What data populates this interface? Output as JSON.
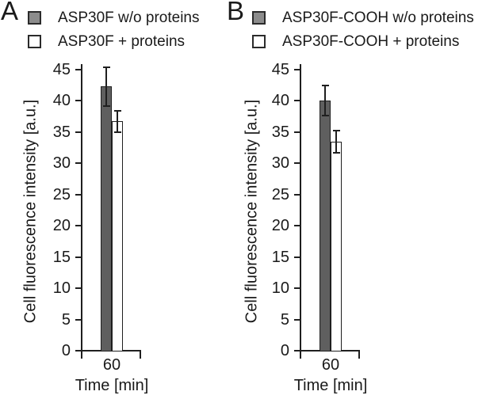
{
  "figure": {
    "background": "#ffffff",
    "text_color": "#1a1a1a",
    "axis_color": "#1f1f1f"
  },
  "chart_data": [
    {
      "panel": "A",
      "type": "bar",
      "categories": [
        "60"
      ],
      "xlabel": "Time [min]",
      "ylabel": "Cell fluorescence intensity [a.u.]",
      "ylim": [
        0,
        45
      ],
      "yticks": [
        0,
        5,
        10,
        15,
        20,
        25,
        30,
        35,
        40,
        45
      ],
      "grid": false,
      "legend_position": "top-left",
      "error_bars": true,
      "series": [
        {
          "name": "ASP30F w/o proteins",
          "values": [
            42.3
          ],
          "errors": [
            3.1
          ],
          "fill": "#5f5f5f",
          "legend_fill": "#8c8c8c",
          "border": "#1f1f1f"
        },
        {
          "name": "ASP30F + proteins",
          "values": [
            36.7
          ],
          "errors": [
            1.7
          ],
          "fill": "#ffffff",
          "legend_fill": "#ffffff",
          "border": "#1f1f1f"
        }
      ]
    },
    {
      "panel": "B",
      "type": "bar",
      "categories": [
        "60"
      ],
      "xlabel": "Time [min]",
      "ylabel": "Cell fluorescence intensity [a.u.]",
      "ylim": [
        0,
        45
      ],
      "yticks": [
        0,
        5,
        10,
        15,
        20,
        25,
        30,
        35,
        40,
        45
      ],
      "grid": false,
      "legend_position": "top-left",
      "error_bars": true,
      "series": [
        {
          "name": "ASP30F-COOH w/o proteins",
          "values": [
            40.1
          ],
          "errors": [
            2.4
          ],
          "fill": "#5f5f5f",
          "legend_fill": "#8c8c8c",
          "border": "#1f1f1f"
        },
        {
          "name": "ASP30F-COOH + proteins",
          "values": [
            33.5
          ],
          "errors": [
            1.8
          ],
          "fill": "#ffffff",
          "legend_fill": "#ffffff",
          "border": "#1f1f1f"
        }
      ]
    }
  ]
}
